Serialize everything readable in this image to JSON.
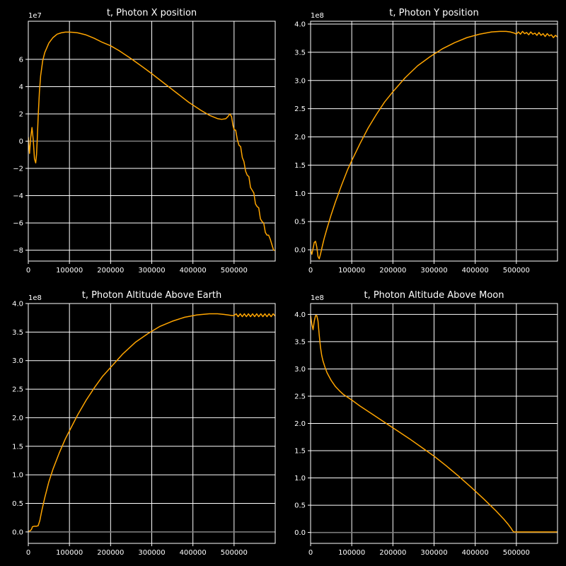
{
  "figure": {
    "background": "#000000",
    "text_color": "#ffffff",
    "grid_color": "#ffffff",
    "line_color": "#ffa500",
    "zero_line_color": "#808080"
  },
  "chart_data": [
    {
      "type": "line",
      "title": "t, Photon X position",
      "xlabel": "",
      "ylabel": "",
      "xlim": [
        0,
        600000
      ],
      "ylim": [
        -8.8,
        8.8
      ],
      "y_exponent_label": "1e7",
      "grid": true,
      "zero_line": true,
      "x_ticks": [
        0,
        100000,
        200000,
        300000,
        400000,
        500000
      ],
      "x_tick_labels": [
        "0",
        "100000",
        "200000",
        "300000",
        "400000",
        "500000"
      ],
      "y_ticks": [
        -8,
        -6,
        -4,
        -2,
        0,
        2,
        4,
        6
      ],
      "y_tick_labels": [
        "−8",
        "−6",
        "−4",
        "−2",
        "0",
        "2",
        "4",
        "6"
      ],
      "series": [
        {
          "x": [
            0,
            3000,
            6000,
            9000,
            12000,
            15000,
            18000,
            20000,
            22000,
            24000,
            27000,
            30000,
            35000,
            40000,
            50000,
            60000,
            70000,
            80000,
            90000,
            100000,
            110000,
            120000,
            140000,
            160000,
            180000,
            200000,
            220000,
            250000,
            280000,
            300000,
            330000,
            360000,
            390000,
            420000,
            440000,
            460000,
            470000,
            480000,
            485000,
            490000,
            494000,
            497000,
            500000,
            504000,
            508000,
            512000,
            516000,
            520000,
            524000,
            528000,
            532000,
            536000,
            540000,
            544000,
            548000,
            552000,
            556000,
            560000,
            564000,
            568000,
            572000,
            576000,
            580000,
            584000,
            588000,
            592000,
            596000,
            600000
          ],
          "y": [
            0.3,
            -0.9,
            0.3,
            1.0,
            0.1,
            -1.3,
            -1.6,
            -1.0,
            0.3,
            1.8,
            3.6,
            4.8,
            5.9,
            6.5,
            7.2,
            7.6,
            7.85,
            7.95,
            8.0,
            8.0,
            7.98,
            7.95,
            7.8,
            7.55,
            7.25,
            7.0,
            6.65,
            6.05,
            5.4,
            4.95,
            4.25,
            3.55,
            2.85,
            2.25,
            1.9,
            1.65,
            1.6,
            1.65,
            1.8,
            2.0,
            1.8,
            1.2,
            0.85,
            0.8,
            0.1,
            -0.3,
            -0.4,
            -1.2,
            -1.5,
            -2.2,
            -2.5,
            -2.6,
            -3.4,
            -3.6,
            -3.8,
            -4.6,
            -4.8,
            -4.9,
            -5.7,
            -5.9,
            -6.0,
            -6.7,
            -6.9,
            -6.9,
            -7.2,
            -7.6,
            -8.0,
            -8.0
          ]
        }
      ]
    },
    {
      "type": "line",
      "title": "t, Photon Y position",
      "xlabel": "",
      "ylabel": "",
      "xlim": [
        0,
        600000
      ],
      "ylim": [
        -0.2,
        4.05
      ],
      "y_exponent_label": "1e8",
      "grid": true,
      "zero_line": true,
      "x_ticks": [
        0,
        100000,
        200000,
        300000,
        400000,
        500000
      ],
      "x_tick_labels": [
        "0",
        "100000",
        "200000",
        "300000",
        "400000",
        "500000"
      ],
      "y_ticks": [
        0,
        0.5,
        1.0,
        1.5,
        2.0,
        2.5,
        3.0,
        3.5,
        4.0
      ],
      "y_tick_labels": [
        "0.0",
        "0.5",
        "1.0",
        "1.5",
        "2.0",
        "2.5",
        "3.0",
        "3.5",
        "4.0"
      ],
      "series": [
        {
          "x": [
            0,
            3000,
            6000,
            9000,
            12000,
            15000,
            18000,
            21000,
            24000,
            28000,
            33000,
            40000,
            50000,
            60000,
            75000,
            90000,
            100000,
            120000,
            140000,
            160000,
            180000,
            200000,
            230000,
            260000,
            290000,
            320000,
            350000,
            380000,
            410000,
            440000,
            460000,
            475000,
            485000,
            495000,
            500000,
            505000,
            510000,
            515000,
            520000,
            525000,
            530000,
            535000,
            540000,
            545000,
            550000,
            555000,
            560000,
            565000,
            570000,
            575000,
            580000,
            585000,
            590000,
            595000,
            600000
          ],
          "y": [
            0.0,
            -0.08,
            0.02,
            0.13,
            0.15,
            0.05,
            -0.12,
            -0.16,
            -0.08,
            0.05,
            0.2,
            0.38,
            0.62,
            0.84,
            1.14,
            1.42,
            1.58,
            1.88,
            2.16,
            2.4,
            2.62,
            2.8,
            3.05,
            3.26,
            3.42,
            3.56,
            3.67,
            3.76,
            3.82,
            3.86,
            3.87,
            3.87,
            3.86,
            3.84,
            3.82,
            3.86,
            3.82,
            3.87,
            3.83,
            3.85,
            3.81,
            3.86,
            3.82,
            3.84,
            3.8,
            3.85,
            3.8,
            3.83,
            3.78,
            3.83,
            3.79,
            3.81,
            3.76,
            3.8,
            3.77
          ]
        }
      ]
    },
    {
      "type": "line",
      "title": "t, Photon Altitude Above Earth",
      "xlabel": "",
      "ylabel": "",
      "xlim": [
        0,
        600000
      ],
      "ylim": [
        -0.2,
        4.0
      ],
      "y_exponent_label": "1e8",
      "grid": true,
      "zero_line": true,
      "x_ticks": [
        0,
        100000,
        200000,
        300000,
        400000,
        500000
      ],
      "x_tick_labels": [
        "0",
        "100000",
        "200000",
        "300000",
        "400000",
        "500000"
      ],
      "y_ticks": [
        0,
        0.5,
        1.0,
        1.5,
        2.0,
        2.5,
        3.0,
        3.5,
        4.0
      ],
      "y_tick_labels": [
        "0.0",
        "0.5",
        "1.0",
        "1.5",
        "2.0",
        "2.5",
        "3.0",
        "3.5",
        "4.0"
      ],
      "series": [
        {
          "x": [
            0,
            5000,
            8000,
            10000,
            14000,
            20000,
            24000,
            28000,
            33000,
            40000,
            50000,
            60000,
            75000,
            90000,
            100000,
            120000,
            140000,
            160000,
            180000,
            200000,
            230000,
            260000,
            290000,
            320000,
            350000,
            380000,
            410000,
            440000,
            460000,
            475000,
            485000,
            495000,
            500000,
            505000,
            510000,
            515000,
            520000,
            525000,
            530000,
            535000,
            540000,
            545000,
            550000,
            555000,
            560000,
            565000,
            570000,
            575000,
            580000,
            585000,
            590000,
            595000,
            600000
          ],
          "y": [
            0.01,
            0.02,
            0.05,
            0.09,
            0.1,
            0.1,
            0.11,
            0.2,
            0.38,
            0.6,
            0.88,
            1.1,
            1.38,
            1.63,
            1.77,
            2.05,
            2.3,
            2.52,
            2.72,
            2.88,
            3.12,
            3.32,
            3.47,
            3.6,
            3.69,
            3.76,
            3.8,
            3.82,
            3.82,
            3.81,
            3.8,
            3.79,
            3.79,
            3.82,
            3.77,
            3.82,
            3.77,
            3.82,
            3.77,
            3.82,
            3.77,
            3.82,
            3.77,
            3.82,
            3.77,
            3.82,
            3.77,
            3.82,
            3.77,
            3.82,
            3.77,
            3.82,
            3.78
          ]
        }
      ]
    },
    {
      "type": "line",
      "title": "t, Photon Altitude Above Moon",
      "xlabel": "",
      "ylabel": "",
      "xlim": [
        0,
        600000
      ],
      "ylim": [
        -0.2,
        4.2
      ],
      "y_exponent_label": "1e8",
      "grid": true,
      "zero_line": true,
      "x_ticks": [
        0,
        100000,
        200000,
        300000,
        400000,
        500000
      ],
      "x_tick_labels": [
        "0",
        "100000",
        "200000",
        "300000",
        "400000",
        "500000"
      ],
      "y_ticks": [
        0,
        0.5,
        1.0,
        1.5,
        2.0,
        2.5,
        3.0,
        3.5,
        4.0
      ],
      "y_tick_labels": [
        "0.0",
        "0.5",
        "1.0",
        "1.5",
        "2.0",
        "2.5",
        "3.0",
        "3.5",
        "4.0"
      ],
      "series": [
        {
          "x": [
            0,
            3000,
            6000,
            9000,
            12000,
            15000,
            18000,
            21000,
            24000,
            27000,
            30000,
            35000,
            40000,
            50000,
            60000,
            70000,
            80000,
            100000,
            120000,
            150000,
            180000,
            210000,
            240000,
            270000,
            300000,
            330000,
            360000,
            390000,
            420000,
            450000,
            470000,
            480000,
            487000,
            491000,
            494000,
            500000,
            550000,
            600000
          ],
          "y": [
            3.98,
            3.82,
            3.72,
            3.88,
            3.98,
            3.98,
            3.88,
            3.62,
            3.4,
            3.25,
            3.15,
            3.03,
            2.93,
            2.79,
            2.68,
            2.6,
            2.53,
            2.43,
            2.32,
            2.17,
            2.02,
            1.87,
            1.72,
            1.56,
            1.4,
            1.22,
            1.03,
            0.83,
            0.62,
            0.4,
            0.24,
            0.15,
            0.08,
            0.03,
            0.01,
            0.01,
            0.01,
            0.01
          ]
        }
      ]
    }
  ]
}
